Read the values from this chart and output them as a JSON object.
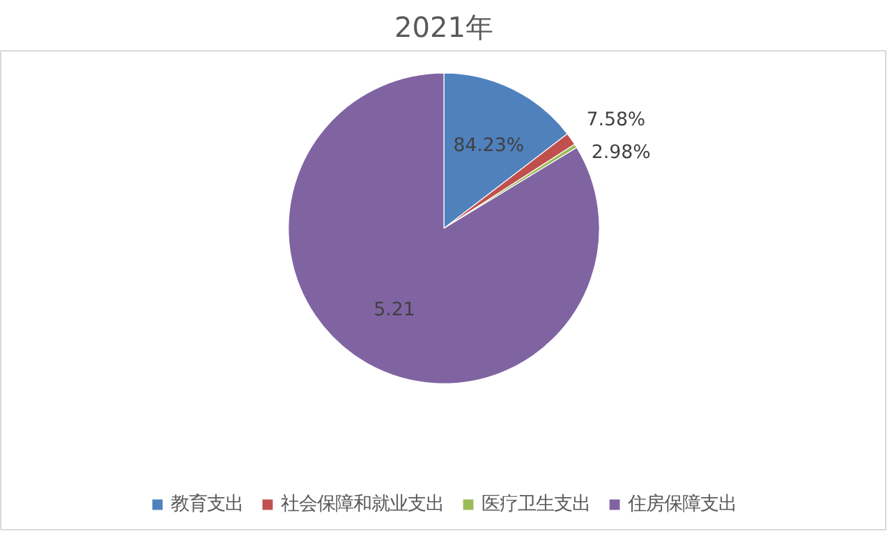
{
  "chart_data": {
    "type": "pie",
    "title": "2021年",
    "categories": [
      "教育支出",
      "社会保障和就业支出",
      "医疗卫生支出",
      "住房保障支出"
    ],
    "values": [
      14.6,
      1.3,
      0.4,
      83.7
    ],
    "colors": [
      "#4f81bd",
      "#c0504d",
      "#9bbb59",
      "#8064a2"
    ],
    "annotations": [
      "84.23%",
      "7.58%",
      "2.98%",
      "5.21"
    ],
    "legend": "bottom"
  }
}
